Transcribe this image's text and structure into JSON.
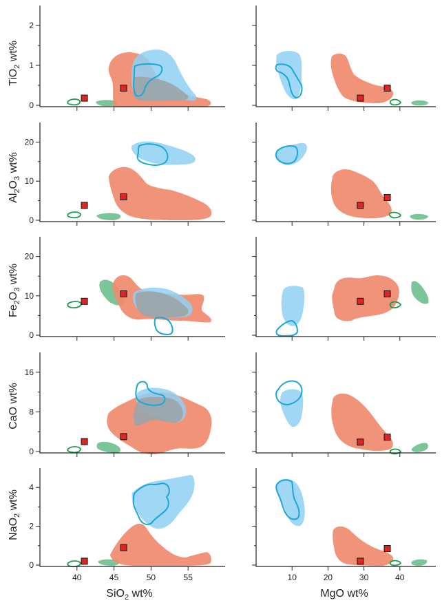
{
  "chart_data": [
    {
      "type": "scatter",
      "panel": "SiO2-TiO2",
      "x_axis": {
        "label": "SiO2 wt%",
        "ticks": [
          40,
          45,
          50,
          55
        ],
        "range": [
          35,
          60
        ]
      },
      "y_axis": {
        "label": "TiO2 wt%",
        "ticks": [
          0,
          1,
          2
        ],
        "range": [
          0,
          2.5
        ]
      },
      "points": [
        {
          "x": 41,
          "y": 0.18
        },
        {
          "x": 46.3,
          "y": 0.43
        }
      ]
    },
    {
      "type": "scatter",
      "panel": "MgO-TiO2",
      "x_axis": {
        "label": "MgO wt%",
        "ticks": [
          10,
          20,
          30,
          40
        ],
        "range": [
          0,
          50
        ]
      },
      "y_axis": {
        "label": "TiO2 wt%",
        "ticks": [
          0,
          1,
          2
        ],
        "range": [
          0,
          2.5
        ]
      },
      "points": [
        {
          "x": 29,
          "y": 0.18
        },
        {
          "x": 36.5,
          "y": 0.43
        }
      ]
    },
    {
      "type": "scatter",
      "panel": "SiO2-Al2O3",
      "x_axis": {
        "label": "SiO2 wt%",
        "ticks": [
          40,
          45,
          50,
          55
        ],
        "range": [
          35,
          60
        ]
      },
      "y_axis": {
        "label": "Al2O3 wt%",
        "ticks": [
          0,
          10,
          20
        ],
        "range": [
          0,
          25
        ]
      },
      "points": [
        {
          "x": 41,
          "y": 3.8
        },
        {
          "x": 46.3,
          "y": 6
        }
      ]
    },
    {
      "type": "scatter",
      "panel": "MgO-Al2O3",
      "x_axis": {
        "label": "MgO wt%",
        "ticks": [
          10,
          20,
          30,
          40
        ],
        "range": [
          0,
          50
        ]
      },
      "y_axis": {
        "label": "Al2O3 wt%",
        "ticks": [
          0,
          10,
          20
        ],
        "range": [
          0,
          25
        ]
      },
      "points": [
        {
          "x": 29,
          "y": 3.8
        },
        {
          "x": 36.5,
          "y": 5.8
        }
      ]
    },
    {
      "type": "scatter",
      "panel": "SiO2-Fe2O3",
      "x_axis": {
        "label": "SiO2 wt%",
        "ticks": [
          40,
          45,
          50,
          55
        ],
        "range": [
          35,
          60
        ]
      },
      "y_axis": {
        "label": "Fe2O3 wt%",
        "ticks": [
          0,
          10,
          20
        ],
        "range": [
          0,
          25
        ]
      },
      "points": [
        {
          "x": 41,
          "y": 8.6
        },
        {
          "x": 46.3,
          "y": 10.5
        }
      ]
    },
    {
      "type": "scatter",
      "panel": "MgO-Fe2O3",
      "x_axis": {
        "label": "MgO wt%",
        "ticks": [
          10,
          20,
          30,
          40
        ],
        "range": [
          0,
          50
        ]
      },
      "y_axis": {
        "label": "Fe2O3 wt%",
        "ticks": [
          0,
          10,
          20
        ],
        "range": [
          0,
          25
        ]
      },
      "points": [
        {
          "x": 29,
          "y": 8.6
        },
        {
          "x": 36.5,
          "y": 10.5
        }
      ]
    },
    {
      "type": "scatter",
      "panel": "SiO2-CaO",
      "x_axis": {
        "label": "SiO2 wt%",
        "ticks": [
          40,
          45,
          50,
          55
        ],
        "range": [
          35,
          60
        ]
      },
      "y_axis": {
        "label": "CaO wt%",
        "ticks": [
          0,
          8,
          16
        ],
        "range": [
          0,
          20
        ]
      },
      "points": [
        {
          "x": 41,
          "y": 2
        },
        {
          "x": 46.3,
          "y": 3
        }
      ]
    },
    {
      "type": "scatter",
      "panel": "MgO-CaO",
      "x_axis": {
        "label": "MgO wt%",
        "ticks": [
          10,
          20,
          30,
          40
        ],
        "range": [
          0,
          50
        ]
      },
      "y_axis": {
        "label": "CaO wt%",
        "ticks": [
          0,
          8,
          16
        ],
        "range": [
          0,
          20
        ]
      },
      "points": [
        {
          "x": 29,
          "y": 1.9
        },
        {
          "x": 36.5,
          "y": 2.9
        }
      ]
    },
    {
      "type": "scatter",
      "panel": "SiO2-NaO2",
      "x_axis": {
        "label": "SiO2 wt%",
        "ticks": [
          40,
          45,
          50,
          55
        ],
        "range": [
          35,
          60
        ]
      },
      "y_axis": {
        "label": "NaO2 wt%",
        "ticks": [
          0,
          2,
          4
        ],
        "range": [
          0,
          5
        ]
      },
      "points": [
        {
          "x": 41,
          "y": 0.2
        },
        {
          "x": 46.3,
          "y": 0.9
        }
      ]
    },
    {
      "type": "scatter",
      "panel": "MgO-NaO2",
      "x_axis": {
        "label": "MgO wt%",
        "ticks": [
          10,
          20,
          30,
          40
        ],
        "range": [
          0,
          50
        ]
      },
      "y_axis": {
        "label": "NaO2 wt%",
        "ticks": [
          0,
          2,
          4
        ],
        "range": [
          0,
          5
        ]
      },
      "points": [
        {
          "x": 29,
          "y": 0.2
        },
        {
          "x": 36.5,
          "y": 0.85
        }
      ]
    }
  ],
  "colors": {
    "field_salmon": "#f08a6c",
    "field_blue": "#8fd0f3",
    "field_overlap": "#9aa4a8",
    "field_green": "#6cc08e",
    "outline_blue": "#18a8d8",
    "outline_green": "#1e9a4a",
    "sample_point": "#e02424"
  },
  "labels": {
    "x_left": "SiO",
    "x_left_sub": "2",
    "x_left_rest": " wt%",
    "x_right": "MgO wt%",
    "y": [
      {
        "pre": "TiO",
        "sub": "2",
        "post": " wt%"
      },
      {
        "pre": "Al",
        "sub": "2",
        "mid": "O",
        "sub2": "3",
        "post": " wt%"
      },
      {
        "pre": "Fe",
        "sub": "2",
        "mid": "O",
        "sub2": "3",
        "post": " wt%"
      },
      {
        "pre": "CaO wt%"
      },
      {
        "pre": "NaO",
        "sub": "2",
        "post": " wt%"
      }
    ]
  }
}
